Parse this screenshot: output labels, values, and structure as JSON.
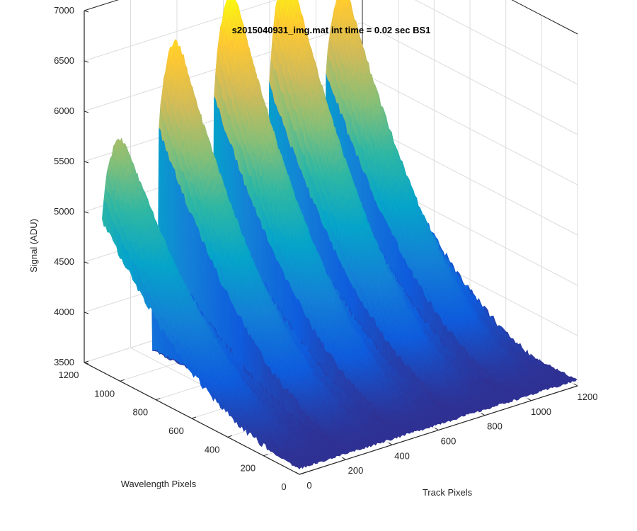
{
  "chart_data": {
    "type": "surface",
    "title": "s2015040931_img.mat int time = 0.02 sec   BS1",
    "xlabel": "Track Pixels",
    "ylabel": "Wavelength Pixels",
    "zlabel": "Signal (ADU)",
    "xlim": [
      0,
      1200
    ],
    "ylim": [
      0,
      1200
    ],
    "zlim": [
      3500,
      7000
    ],
    "x_ticks": [
      "0",
      "200",
      "400",
      "600",
      "800",
      "1000",
      "1200"
    ],
    "y_ticks": [
      "0",
      "200",
      "400",
      "600",
      "800",
      "1000",
      "1200"
    ],
    "z_ticks": [
      "3500",
      "4000",
      "4500",
      "5000",
      "5500",
      "6000",
      "6500",
      "7000"
    ],
    "grid": true,
    "colormap": "parula",
    "colors": [
      "#352A87",
      "#0F5CDD",
      "#1481D6",
      "#06A4CA",
      "#2EB7A4",
      "#87BF77",
      "#D1BB59",
      "#FEC832",
      "#F9FB0E"
    ],
    "background_level": 3560,
    "bands": [
      {
        "track_start": 0,
        "track_end": 210,
        "peak_signal": 5750,
        "peak_wavelength": 1100
      },
      {
        "track_start": 240,
        "track_end": 450,
        "peak_signal": 6550,
        "peak_wavelength": 1100
      },
      {
        "track_start": 480,
        "track_end": 690,
        "peak_signal": 6850,
        "peak_wavelength": 1100
      },
      {
        "track_start": 720,
        "track_end": 930,
        "peak_signal": 6900,
        "peak_wavelength": 1100
      },
      {
        "track_start": 960,
        "track_end": 1170,
        "peak_signal": 6550,
        "peak_wavelength": 1100
      }
    ],
    "surface_extent": {
      "track": [
        0,
        1200
      ],
      "wavelength": [
        0,
        1100
      ]
    }
  }
}
